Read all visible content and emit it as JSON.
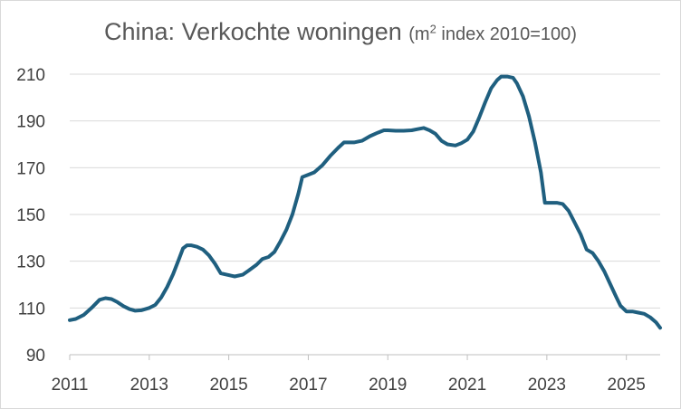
{
  "chart_data": {
    "type": "line",
    "title": "China: Verkochte woningen",
    "subtitle": {
      "prefix": "(m",
      "superscript": "2",
      "suffix": " index 2010=100)"
    },
    "xlabel": "",
    "ylabel": "",
    "xlim": [
      2011,
      2025.85
    ],
    "ylim": [
      90,
      210
    ],
    "y_ticks": [
      90,
      110,
      130,
      150,
      170,
      190,
      210
    ],
    "x_ticks": [
      2011,
      2013,
      2015,
      2017,
      2019,
      2021,
      2023,
      2025
    ],
    "grid": "horizontal",
    "legend": "none",
    "series": [
      {
        "name": "Verkochte woningen",
        "color": "#1f5f7f",
        "x": [
          2011.0,
          2011.15,
          2011.35,
          2011.55,
          2011.75,
          2011.9,
          2012.05,
          2012.2,
          2012.35,
          2012.5,
          2012.65,
          2012.8,
          2013.0,
          2013.15,
          2013.3,
          2013.45,
          2013.6,
          2013.75,
          2013.85,
          2013.95,
          2014.05,
          2014.2,
          2014.35,
          2014.5,
          2014.65,
          2014.8,
          2014.95,
          2015.15,
          2015.35,
          2015.5,
          2015.7,
          2015.85,
          2016.0,
          2016.15,
          2016.3,
          2016.45,
          2016.6,
          2016.75,
          2016.85,
          2017.0,
          2017.15,
          2017.35,
          2017.55,
          2017.75,
          2017.9,
          2018.15,
          2018.35,
          2018.55,
          2018.75,
          2018.9,
          2019.0,
          2019.2,
          2019.4,
          2019.6,
          2019.75,
          2019.9,
          2020.05,
          2020.2,
          2020.35,
          2020.5,
          2020.7,
          2020.85,
          2021.0,
          2021.15,
          2021.3,
          2021.45,
          2021.6,
          2021.75,
          2021.85,
          2022.0,
          2022.15,
          2022.25,
          2022.4,
          2022.55,
          2022.7,
          2022.85,
          2022.95,
          2023.1,
          2023.25,
          2023.4,
          2023.55,
          2023.7,
          2023.85,
          2024.0,
          2024.15,
          2024.3,
          2024.45,
          2024.6,
          2024.75,
          2024.85,
          2025.0,
          2025.15,
          2025.3,
          2025.45,
          2025.6,
          2025.75,
          2025.85
        ],
        "values": [
          104.8,
          105.3,
          107.0,
          110.0,
          113.5,
          114.2,
          113.8,
          112.5,
          110.8,
          109.5,
          108.8,
          109.0,
          110.0,
          111.3,
          114.5,
          119.0,
          124.5,
          131.0,
          135.5,
          136.8,
          136.8,
          136.2,
          135.0,
          132.5,
          129.0,
          124.8,
          124.2,
          123.5,
          124.2,
          126.0,
          128.5,
          131.0,
          131.8,
          134.0,
          138.5,
          143.5,
          150.0,
          159.0,
          166.0,
          167.0,
          168.0,
          171.0,
          175.0,
          178.5,
          180.8,
          180.8,
          181.5,
          183.5,
          185.0,
          186.0,
          186.0,
          185.8,
          185.8,
          186.0,
          186.5,
          187.0,
          186.0,
          184.5,
          181.5,
          180.0,
          179.5,
          180.5,
          182.0,
          185.5,
          191.5,
          198.0,
          204.0,
          207.5,
          209.0,
          209.0,
          208.5,
          206.0,
          200.5,
          192.0,
          181.0,
          168.0,
          155.0,
          155.0,
          155.0,
          154.5,
          151.5,
          146.5,
          141.5,
          135.0,
          133.5,
          130.0,
          125.5,
          120.0,
          114.5,
          111.0,
          108.5,
          108.5,
          108.0,
          107.5,
          106.0,
          103.8,
          101.5
        ]
      }
    ]
  }
}
